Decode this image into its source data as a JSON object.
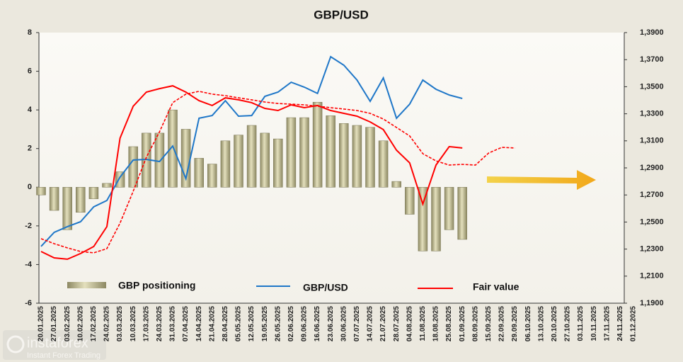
{
  "chart_data": {
    "type": "bar",
    "title": "GBP/USD",
    "categories": [
      "20.01.2025",
      "27.01.2025",
      "03.02.2025",
      "10.02.2025",
      "17.02.2025",
      "24.02.2025",
      "03.03.2025",
      "10.03.2025",
      "17.03.2025",
      "24.03.2025",
      "31.03.2025",
      "07.04.2025",
      "14.04.2025",
      "21.04.2025",
      "28.04.2025",
      "05.05.2025",
      "12.05.2025",
      "19.05.2025",
      "26.05.2025",
      "02.06.2025",
      "09.06.2025",
      "16.06.2025",
      "23.06.2025",
      "30.06.2025",
      "07.07.2025",
      "14.07.2025",
      "21.07.2025",
      "28.07.2025",
      "04.08.2025",
      "11.08.2025",
      "18.08.2025",
      "25.08.2025",
      "01.09.2025",
      "08.09.2025",
      "15.09.2025",
      "22.09.2025",
      "29.09.2025",
      "06.10.2025",
      "13.10.2025",
      "20.10.2025",
      "27.10.2025",
      "03.11.2025",
      "10.11.2025",
      "17.11.2025",
      "24.11.2025",
      "01.12.2025"
    ],
    "series": [
      {
        "name": "GBP positioning",
        "type": "bar",
        "axis": "y",
        "color": "#c9c49a",
        "values": [
          -0.4,
          -1.2,
          -2.2,
          -1.3,
          -0.6,
          0.2,
          0.8,
          2.1,
          2.8,
          2.8,
          4.0,
          3.0,
          1.5,
          1.2,
          2.4,
          2.7,
          3.2,
          2.8,
          2.5,
          3.6,
          3.6,
          4.4,
          3.7,
          3.3,
          3.2,
          3.1,
          2.4,
          0.3,
          -1.4,
          -3.3,
          -3.3,
          -2.2,
          -2.7,
          null,
          null,
          null,
          null,
          null,
          null,
          null,
          null,
          null,
          null,
          null,
          null,
          null
        ]
      },
      {
        "name": "GBP/USD",
        "type": "line",
        "axis": "y2",
        "color": "#1f77c8",
        "values": [
          1.232,
          1.2424,
          1.2466,
          1.2502,
          1.2612,
          1.2659,
          1.2832,
          1.2958,
          1.2963,
          1.2947,
          1.3062,
          1.2821,
          1.3267,
          1.3287,
          1.3397,
          1.3282,
          1.3287,
          1.3429,
          1.346,
          1.3533,
          1.3497,
          1.345,
          1.3722,
          1.3659,
          1.3549,
          1.3392,
          1.3565,
          1.3267,
          1.3371,
          1.3549,
          1.3481,
          1.3439,
          1.3413,
          null,
          null,
          null,
          null,
          null,
          null,
          null,
          null,
          null,
          null,
          null,
          null,
          null
        ]
      },
      {
        "name": "Fair value",
        "type": "line",
        "axis": "y2",
        "color": "#ff0000",
        "values": [
          1.2282,
          1.2235,
          1.2225,
          1.2267,
          1.2319,
          1.2466,
          1.312,
          1.3356,
          1.346,
          1.3486,
          1.3507,
          1.346,
          1.3397,
          1.3361,
          1.3418,
          1.3403,
          1.3382,
          1.334,
          1.3324,
          1.3366,
          1.3345,
          1.3361,
          1.3324,
          1.3303,
          1.3282,
          1.324,
          1.3183,
          1.3031,
          1.2937,
          1.2633,
          1.2921,
          1.3057,
          1.3047,
          null,
          null,
          null,
          null,
          null,
          null,
          null,
          null,
          null,
          null,
          null,
          null,
          null
        ]
      },
      {
        "type": "line",
        "axis": "y2",
        "color": "#ff0000",
        "dashed": true,
        "values": [
          1.2377,
          1.234,
          1.2309,
          1.2282,
          1.2272,
          1.2303,
          1.2492,
          1.2727,
          1.2979,
          1.3167,
          1.3382,
          1.3445,
          1.3466,
          1.3445,
          1.3434,
          1.3418,
          1.3403,
          1.3387,
          1.3376,
          1.3371,
          1.3366,
          1.3356,
          1.3345,
          1.3335,
          1.3324,
          1.3303,
          1.3261,
          1.3199,
          1.3136,
          1.3005,
          1.2952,
          1.2921,
          1.2926,
          1.2921,
          1.301,
          1.3052,
          1.3047,
          null,
          null,
          null,
          null,
          null,
          null,
          null,
          null,
          null
        ]
      }
    ],
    "ylim": [
      -6,
      8
    ],
    "yticks": [
      -6,
      -4,
      -2,
      0,
      2,
      4,
      6,
      8
    ],
    "y2lim": [
      1.19,
      1.39
    ],
    "y2ticks": [
      {
        "value": 1.19,
        "label": "1,1900"
      },
      {
        "value": 1.21,
        "label": "1,2100"
      },
      {
        "value": 1.23,
        "label": "1,2300"
      },
      {
        "value": 1.25,
        "label": "1,2500"
      },
      {
        "value": 1.27,
        "label": "1,2700"
      },
      {
        "value": 1.29,
        "label": "1,2900"
      },
      {
        "value": 1.31,
        "label": "1,3100"
      },
      {
        "value": 1.33,
        "label": "1,3300"
      },
      {
        "value": 1.35,
        "label": "1,3500"
      },
      {
        "value": 1.37,
        "label": "1,3700"
      },
      {
        "value": 1.39,
        "label": "1,3900"
      }
    ],
    "grid": false
  },
  "watermark": {
    "brand": "instaforex",
    "tagline": "Instant Forex Trading"
  }
}
